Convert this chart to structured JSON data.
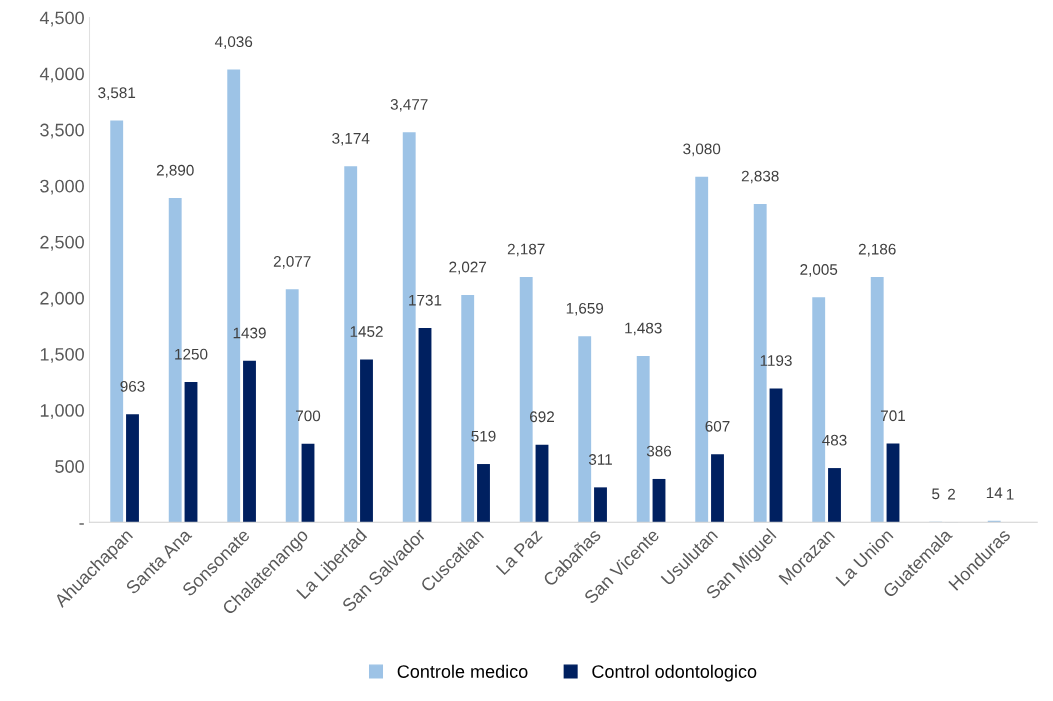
{
  "chart_data": {
    "type": "bar",
    "categories": [
      "Ahuachapan",
      "Santa Ana",
      "Sonsonate",
      "Chalatenango",
      "La Libertad",
      "San Salvador",
      "Cuscatlan",
      "La Paz",
      "Cabañas",
      "San Vicente",
      "Usulutan",
      "San Miguel",
      "Morazan",
      "La Union",
      "Guatemala",
      "Honduras"
    ],
    "series": [
      {
        "name": "Controle medico",
        "color": "#9dc3e6",
        "values": [
          3581,
          2890,
          4036,
          2077,
          3174,
          3477,
          2027,
          2187,
          1659,
          1483,
          3080,
          2838,
          2005,
          2186,
          5,
          14
        ],
        "value_labels": [
          "3,581",
          "2,890",
          "4,036",
          "2,077",
          "3,174",
          "3,477",
          "2,027",
          "2,187",
          "1,659",
          "1,483",
          "3,080",
          "2,838",
          "2,005",
          "2,186",
          "5",
          "14"
        ]
      },
      {
        "name": "Control odontologico",
        "color": "#002060",
        "values": [
          963,
          1250,
          1439,
          700,
          1452,
          1731,
          519,
          692,
          311,
          386,
          607,
          1193,
          483,
          701,
          2,
          1
        ],
        "value_labels": [
          "963",
          "1250",
          "1439",
          "700",
          "1452",
          "1731",
          "519",
          "692",
          "311",
          "386",
          "607",
          "1193",
          "483",
          "701",
          "2",
          "1"
        ]
      }
    ],
    "ylim": [
      0,
      4500
    ],
    "yticks": [
      {
        "value": 0,
        "label": "-"
      },
      {
        "value": 500,
        "label": "500"
      },
      {
        "value": 1000,
        "label": "1,000"
      },
      {
        "value": 1500,
        "label": "1,500"
      },
      {
        "value": 2000,
        "label": "2,000"
      },
      {
        "value": 2500,
        "label": "2,500"
      },
      {
        "value": 3000,
        "label": "3,000"
      },
      {
        "value": 3500,
        "label": "3,500"
      },
      {
        "value": 4000,
        "label": "4,000"
      },
      {
        "value": 4500,
        "label": "4,500"
      }
    ],
    "grid": false,
    "legend": "bottom"
  }
}
